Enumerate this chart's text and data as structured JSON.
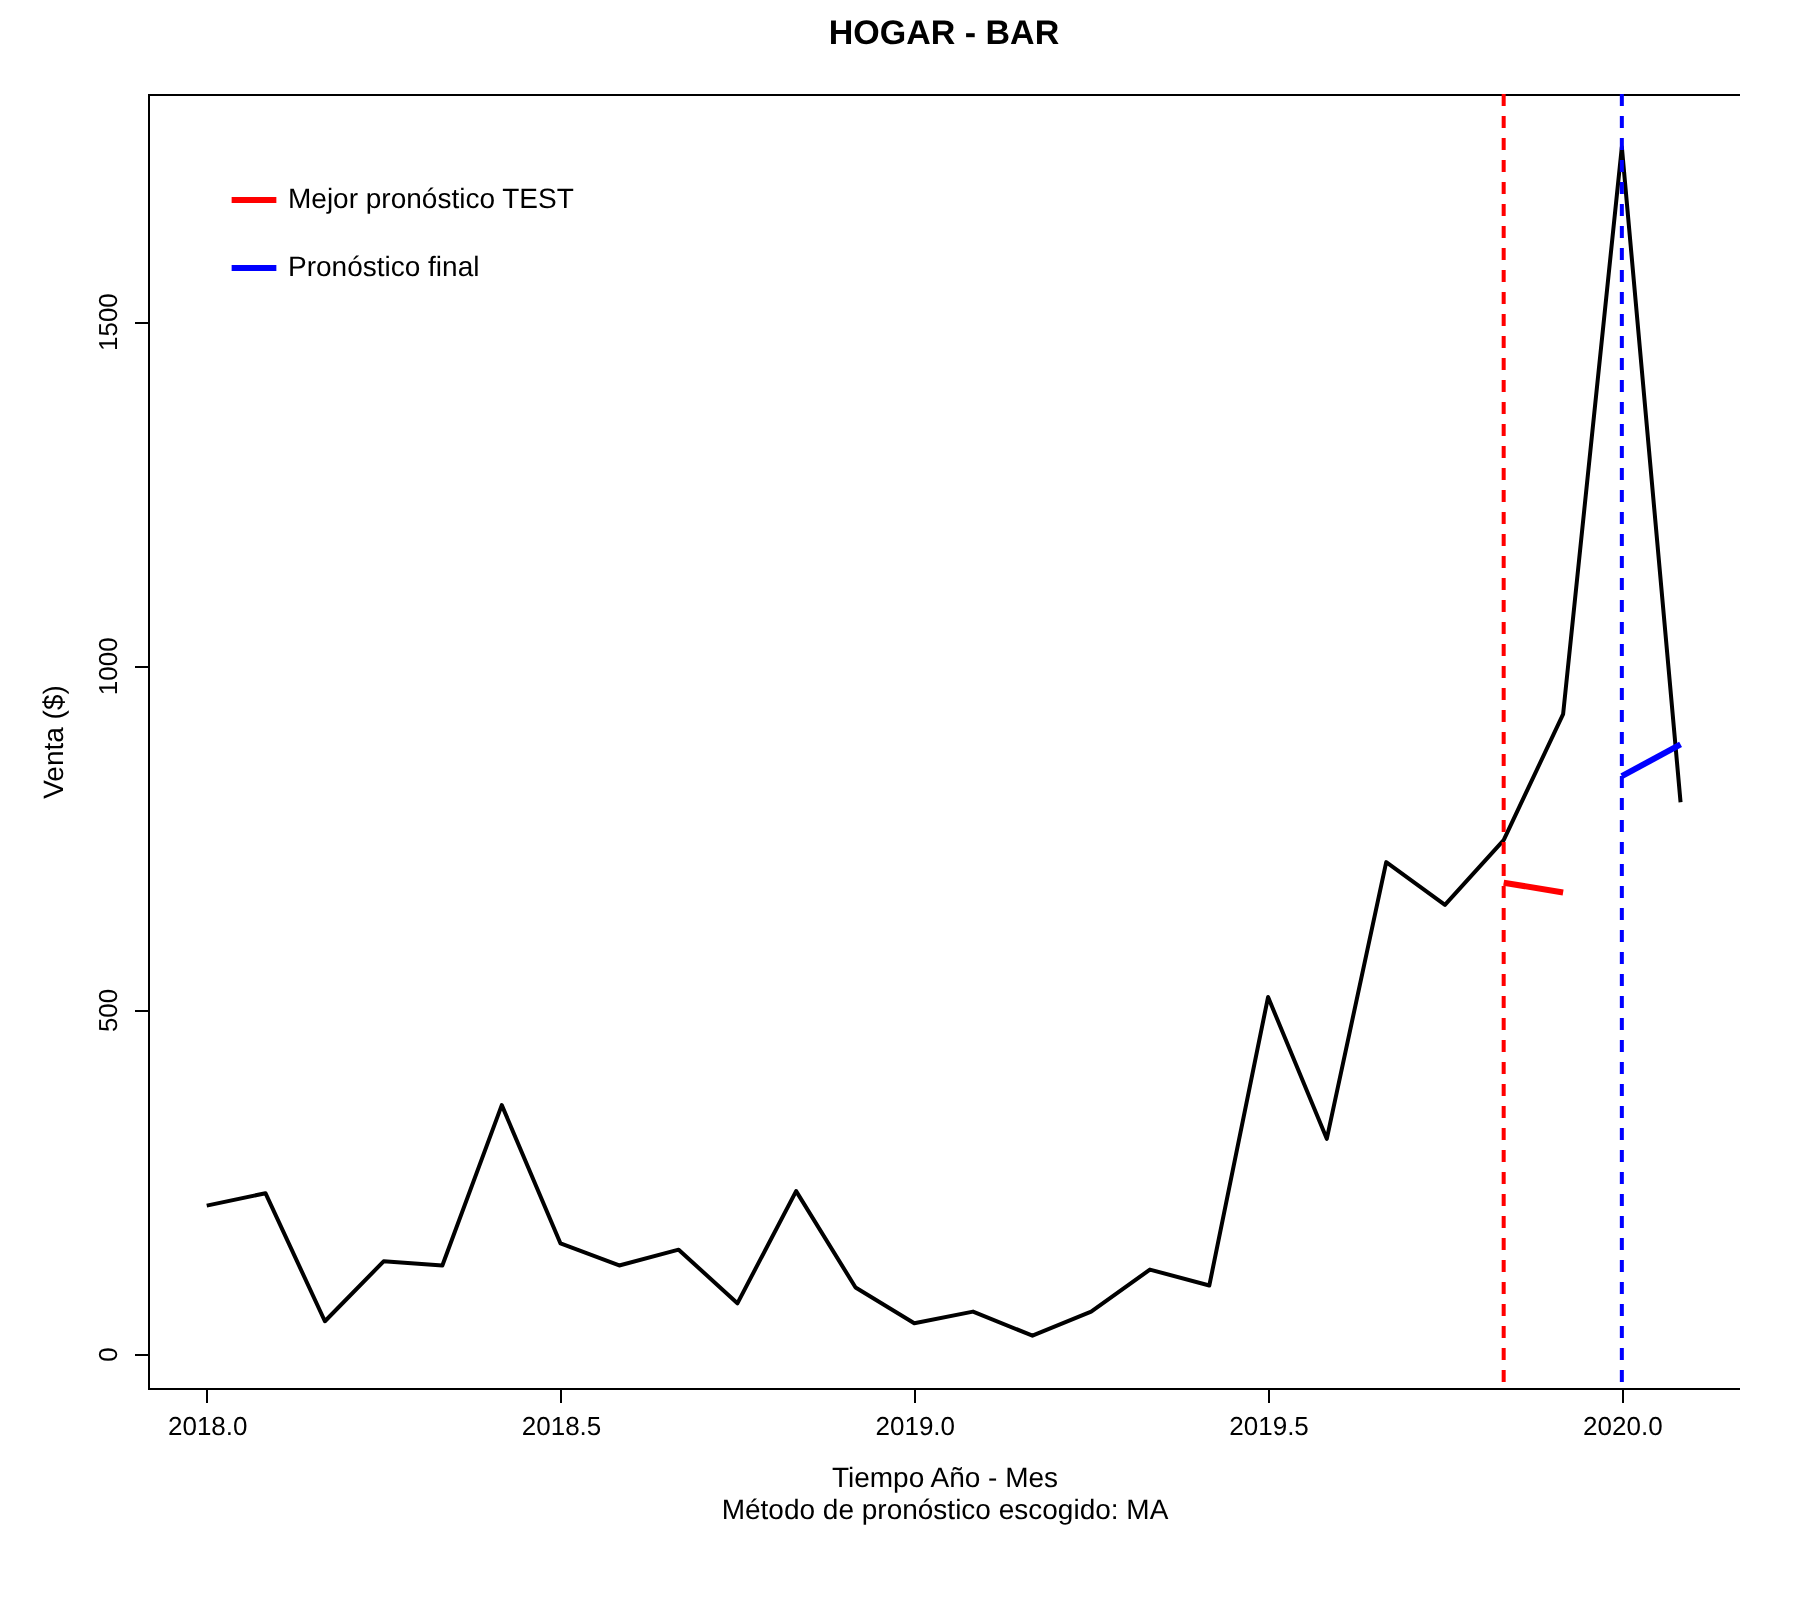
{
  "chart_data": {
    "type": "line",
    "title": "HOGAR - BAR",
    "xlabel": "Tiempo Año - Mes",
    "ylabel": "Venta ($)",
    "annotations": [
      "Método de pronóstico escogido: MA"
    ],
    "xlim": [
      2017.917,
      2020.167
    ],
    "ylim": [
      -50,
      1830
    ],
    "xticks": [
      {
        "value": 2018,
        "label": "2018.0"
      },
      {
        "value": 2018.5,
        "label": "2018.5"
      },
      {
        "value": 2019,
        "label": "2019.0"
      },
      {
        "value": 2019.5,
        "label": "2019.5"
      },
      {
        "value": 2020,
        "label": "2020.0"
      }
    ],
    "yticks": [
      0,
      500,
      1000,
      1500
    ],
    "grid": false,
    "legend": "top left",
    "marker": "none",
    "line_style": "solid",
    "series": [
      {
        "color": "#000000",
        "x": [
          2018,
          2018.083,
          2018.167,
          2018.25,
          2018.333,
          2018.417,
          2018.5,
          2018.583,
          2018.667,
          2018.75,
          2018.833,
          2018.917,
          2019,
          2019.083,
          2019.167,
          2019.25,
          2019.333,
          2019.417,
          2019.5,
          2019.583,
          2019.667,
          2019.75,
          2019.833,
          2019.917,
          2020,
          2020.083
        ],
        "values": [
          215,
          233,
          47,
          134,
          128,
          361,
          160,
          128,
          151,
          73,
          236,
          96,
          44,
          61,
          26,
          61,
          122,
          99,
          518,
          312,
          714,
          652,
          746,
          929,
          1753,
          801
        ]
      },
      {
        "name": "Mejor pronóstico TEST",
        "color": "#ff0000",
        "x": [
          2019.833,
          2019.917
        ],
        "values": [
          684,
          670
        ]
      },
      {
        "name": "Pronóstico final",
        "color": "#0000ff",
        "x": [
          2020,
          2020.083
        ],
        "values": [
          839,
          885
        ]
      }
    ],
    "ref_lines": [
      {
        "axis": "x",
        "value": 2019.833,
        "color": "#ff0000",
        "line_style": "dashed"
      },
      {
        "axis": "x",
        "value": 2020,
        "color": "#0000ff",
        "line_style": "dashed"
      }
    ]
  }
}
